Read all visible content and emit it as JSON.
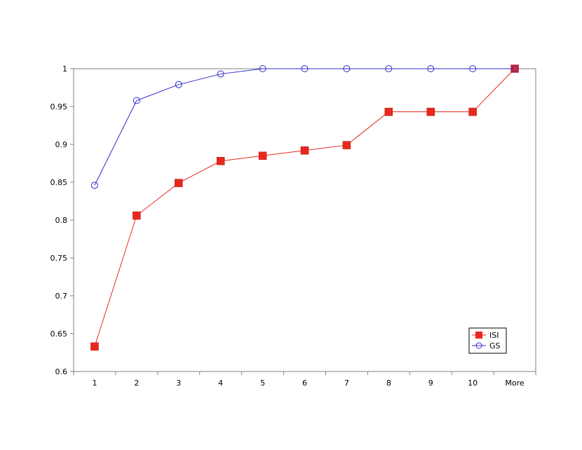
{
  "chart_data": {
    "type": "line",
    "categories": [
      "1",
      "2",
      "3",
      "4",
      "5",
      "6",
      "7",
      "8",
      "9",
      "10",
      "More"
    ],
    "ylim": [
      0.6,
      1.0
    ],
    "yticks": [
      0.6,
      0.65,
      0.7,
      0.75,
      0.8,
      0.85,
      0.9,
      0.95,
      1
    ],
    "ytick_labels": [
      "0.6",
      "0.65",
      "0.7",
      "0.75",
      "0.8",
      "0.85",
      "0.9",
      "0.95",
      "1"
    ],
    "grid": false,
    "legend_position": "bottom-right",
    "series": [
      {
        "name": "ISI",
        "color": "#e8281e",
        "marker": "square",
        "values": [
          0.633,
          0.806,
          0.849,
          0.878,
          0.885,
          0.892,
          0.899,
          0.943,
          0.943,
          0.943,
          1.0
        ]
      },
      {
        "name": "GS",
        "color": "#2c2ccc",
        "marker": "circle",
        "values": [
          0.846,
          0.958,
          0.979,
          0.993,
          1.0,
          1.0,
          1.0,
          1.0,
          1.0,
          1.0,
          1.0
        ]
      }
    ]
  }
}
